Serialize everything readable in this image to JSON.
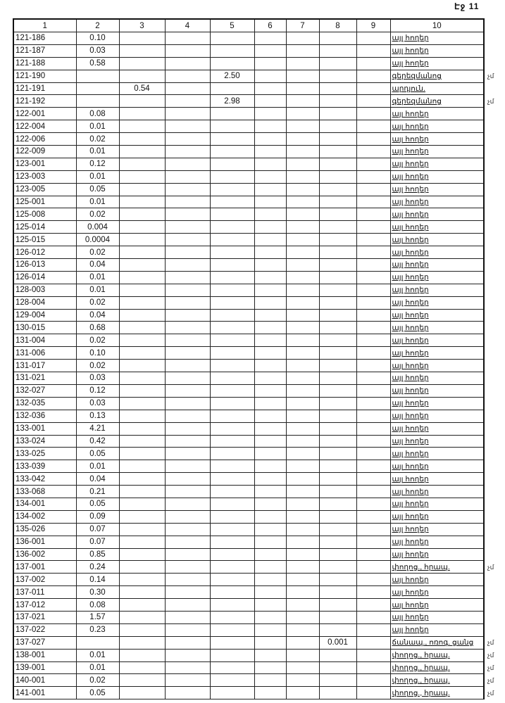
{
  "page_label": "Էջ 11",
  "headers": [
    "1",
    "2",
    "3",
    "4",
    "5",
    "6",
    "7",
    "8",
    "9",
    "10"
  ],
  "rows": [
    {
      "cells": [
        "121-186",
        "0.10",
        "",
        "",
        "",
        "",
        "",
        "",
        "",
        "այլ հողեր"
      ]
    },
    {
      "cells": [
        "121-187",
        "0.03",
        "",
        "",
        "",
        "",
        "",
        "",
        "",
        "այլ հողեր"
      ]
    },
    {
      "cells": [
        "121-188",
        "0.58",
        "",
        "",
        "",
        "",
        "",
        "",
        "",
        "այլ հողեր"
      ]
    },
    {
      "cells": [
        "121-190",
        "",
        "",
        "",
        "2.50",
        "",
        "",
        "",
        "",
        "գերեզմանոց"
      ],
      "mark": "չմ"
    },
    {
      "cells": [
        "121-191",
        "",
        "0.54",
        "",
        "",
        "",
        "",
        "",
        "",
        "արդյուն."
      ]
    },
    {
      "cells": [
        "121-192",
        "",
        "",
        "",
        "2.98",
        "",
        "",
        "",
        "",
        "գերեզմանոց"
      ],
      "mark": "չմ"
    },
    {
      "cells": [
        "122-001",
        "0.08",
        "",
        "",
        "",
        "",
        "",
        "",
        "",
        "այլ հողեր"
      ]
    },
    {
      "cells": [
        "122-004",
        "0.01",
        "",
        "",
        "",
        "",
        "",
        "",
        "",
        "այլ հողեր"
      ]
    },
    {
      "cells": [
        "122-006",
        "0.02",
        "",
        "",
        "",
        "",
        "",
        "",
        "",
        "այլ հողեր"
      ]
    },
    {
      "cells": [
        "122-009",
        "0.01",
        "",
        "",
        "",
        "",
        "",
        "",
        "",
        "այլ հողեր"
      ]
    },
    {
      "cells": [
        "123-001",
        "0.12",
        "",
        "",
        "",
        "",
        "",
        "",
        "",
        "այլ հողեր"
      ]
    },
    {
      "cells": [
        "123-003",
        "0.01",
        "",
        "",
        "",
        "",
        "",
        "",
        "",
        "այլ հողեր"
      ]
    },
    {
      "cells": [
        "123-005",
        "0.05",
        "",
        "",
        "",
        "",
        "",
        "",
        "",
        "այլ հողեր"
      ]
    },
    {
      "cells": [
        "125-001",
        "0.01",
        "",
        "",
        "",
        "",
        "",
        "",
        "",
        "այլ հողեր"
      ]
    },
    {
      "cells": [
        "125-008",
        "0.02",
        "",
        "",
        "",
        "",
        "",
        "",
        "",
        "այլ հողեր"
      ]
    },
    {
      "cells": [
        "125-014",
        "0.004",
        "",
        "",
        "",
        "",
        "",
        "",
        "",
        "այլ հողեր"
      ]
    },
    {
      "cells": [
        "125-015",
        "0.0004",
        "",
        "",
        "",
        "",
        "",
        "",
        "",
        "այլ հողեր"
      ]
    },
    {
      "cells": [
        "126-012",
        "0.02",
        "",
        "",
        "",
        "",
        "",
        "",
        "",
        "այլ հողեր"
      ]
    },
    {
      "cells": [
        "126-013",
        "0.04",
        "",
        "",
        "",
        "",
        "",
        "",
        "",
        "այլ հողեր"
      ]
    },
    {
      "cells": [
        "126-014",
        "0.01",
        "",
        "",
        "",
        "",
        "",
        "",
        "",
        "այլ հողեր"
      ]
    },
    {
      "cells": [
        "128-003",
        "0.01",
        "",
        "",
        "",
        "",
        "",
        "",
        "",
        "այլ հողեր"
      ]
    },
    {
      "cells": [
        "128-004",
        "0.02",
        "",
        "",
        "",
        "",
        "",
        "",
        "",
        "այլ հողեր"
      ]
    },
    {
      "cells": [
        "129-004",
        "0.04",
        "",
        "",
        "",
        "",
        "",
        "",
        "",
        "այլ հողեր"
      ]
    },
    {
      "cells": [
        "130-015",
        "0.68",
        "",
        "",
        "",
        "",
        "",
        "",
        "",
        "այլ հողեր"
      ]
    },
    {
      "cells": [
        "131-004",
        "0.02",
        "",
        "",
        "",
        "",
        "",
        "",
        "",
        "այլ հողեր"
      ]
    },
    {
      "cells": [
        "131-006",
        "0.10",
        "",
        "",
        "",
        "",
        "",
        "",
        "",
        "այլ հողեր"
      ]
    },
    {
      "cells": [
        "131-017",
        "0.02",
        "",
        "",
        "",
        "",
        "",
        "",
        "",
        "այլ հողեր"
      ]
    },
    {
      "cells": [
        "131-021",
        "0.03",
        "",
        "",
        "",
        "",
        "",
        "",
        "",
        "այլ հողեր"
      ]
    },
    {
      "cells": [
        "132-027",
        "0.12",
        "",
        "",
        "",
        "",
        "",
        "",
        "",
        "այլ հողեր"
      ]
    },
    {
      "cells": [
        "132-035",
        "0.03",
        "",
        "",
        "",
        "",
        "",
        "",
        "",
        "այլ հողեր"
      ]
    },
    {
      "cells": [
        "132-036",
        "0.13",
        "",
        "",
        "",
        "",
        "",
        "",
        "",
        "այլ հողեր"
      ]
    },
    {
      "cells": [
        "133-001",
        "4.21",
        "",
        "",
        "",
        "",
        "",
        "",
        "",
        "այլ հողեր"
      ]
    },
    {
      "cells": [
        "133-024",
        "0.42",
        "",
        "",
        "",
        "",
        "",
        "",
        "",
        "այլ հողեր"
      ]
    },
    {
      "cells": [
        "133-025",
        "0.05",
        "",
        "",
        "",
        "",
        "",
        "",
        "",
        "այլ հողեր"
      ]
    },
    {
      "cells": [
        "133-039",
        "0.01",
        "",
        "",
        "",
        "",
        "",
        "",
        "",
        "այլ հողեր"
      ]
    },
    {
      "cells": [
        "133-042",
        "0.04",
        "",
        "",
        "",
        "",
        "",
        "",
        "",
        "այլ հողեր"
      ]
    },
    {
      "cells": [
        "133-068",
        "0.21",
        "",
        "",
        "",
        "",
        "",
        "",
        "",
        "այլ հողեր"
      ]
    },
    {
      "cells": [
        "134-001",
        "0.05",
        "",
        "",
        "",
        "",
        "",
        "",
        "",
        "այլ հողեր"
      ]
    },
    {
      "cells": [
        "134-002",
        "0.09",
        "",
        "",
        "",
        "",
        "",
        "",
        "",
        "այլ հողեր"
      ]
    },
    {
      "cells": [
        "135-026",
        "0.07",
        "",
        "",
        "",
        "",
        "",
        "",
        "",
        "այլ հողեր"
      ]
    },
    {
      "cells": [
        "136-001",
        "0.07",
        "",
        "",
        "",
        "",
        "",
        "",
        "",
        "այլ հողեր"
      ]
    },
    {
      "cells": [
        "136-002",
        "0.85",
        "",
        "",
        "",
        "",
        "",
        "",
        "",
        "այլ հողեր"
      ]
    },
    {
      "cells": [
        "137-001",
        "0.24",
        "",
        "",
        "",
        "",
        "",
        "",
        "",
        "փողոց., հրապ."
      ],
      "mark": "չմ"
    },
    {
      "cells": [
        "137-002",
        "0.14",
        "",
        "",
        "",
        "",
        "",
        "",
        "",
        "այլ հողեր"
      ]
    },
    {
      "cells": [
        "137-011",
        "0.30",
        "",
        "",
        "",
        "",
        "",
        "",
        "",
        "այլ հողեր"
      ]
    },
    {
      "cells": [
        "137-012",
        "0.08",
        "",
        "",
        "",
        "",
        "",
        "",
        "",
        "այլ հողեր"
      ]
    },
    {
      "cells": [
        "137-021",
        "1.57",
        "",
        "",
        "",
        "",
        "",
        "",
        "",
        "այլ հողեր"
      ]
    },
    {
      "cells": [
        "137-022",
        "0.23",
        "",
        "",
        "",
        "",
        "",
        "",
        "",
        "այլ հողեր"
      ]
    },
    {
      "cells": [
        "137-027",
        "",
        "",
        "",
        "",
        "",
        "",
        "0.001",
        "",
        "ճանապ., ոռոգ. ցանց"
      ],
      "mark": "չմ"
    },
    {
      "cells": [
        "138-001",
        "0.01",
        "",
        "",
        "",
        "",
        "",
        "",
        "",
        "փողոց., հրապ."
      ],
      "mark": "չմ"
    },
    {
      "cells": [
        "139-001",
        "0.01",
        "",
        "",
        "",
        "",
        "",
        "",
        "",
        "փողոց., հրապ."
      ],
      "mark": "չմ"
    },
    {
      "cells": [
        "140-001",
        "0.02",
        "",
        "",
        "",
        "",
        "",
        "",
        "",
        "փողոց., հրապ."
      ],
      "mark": "չմ"
    },
    {
      "cells": [
        "141-001",
        "0.05",
        "",
        "",
        "",
        "",
        "",
        "",
        "",
        "փողոց., հրապ."
      ],
      "mark": "չմ"
    }
  ]
}
